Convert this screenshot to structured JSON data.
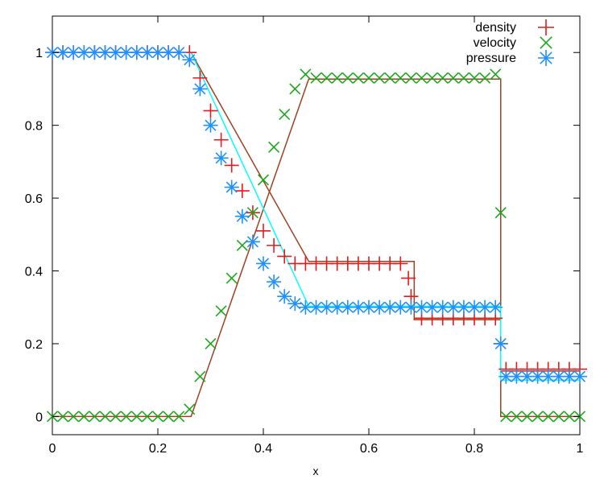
{
  "chart_data": {
    "type": "scatter",
    "title": "",
    "xlabel": "x",
    "ylabel": "",
    "xlim": [
      0,
      1
    ],
    "ylim": [
      -0.05,
      1.1
    ],
    "grid": false,
    "legend_position": "top-right",
    "xticks": [
      0,
      0.2,
      0.4,
      0.6,
      0.8,
      1
    ],
    "xtick_labels": [
      "0",
      "0.2",
      "0.4",
      "0.6",
      "0.8",
      "1"
    ],
    "yticks": [
      0,
      0.2,
      0.4,
      0.6,
      0.8,
      1
    ],
    "ytick_labels": [
      "0",
      "0.2",
      "0.4",
      "0.6",
      "0.8",
      "1"
    ],
    "series": [
      {
        "name": "density",
        "marker": "plus",
        "color": "#e41a1c",
        "line_color": "#a04020",
        "analytic_x": [
          0,
          0.263,
          0.486,
          0.686,
          0.686,
          0.85,
          0.85,
          1
        ],
        "analytic_y": [
          1,
          1,
          0.426,
          0.426,
          0.266,
          0.266,
          0.125,
          0.125
        ],
        "x": [
          0.0,
          0.02,
          0.04,
          0.06,
          0.08,
          0.1,
          0.12,
          0.14,
          0.16,
          0.18,
          0.2,
          0.22,
          0.24,
          0.26,
          0.28,
          0.3,
          0.32,
          0.34,
          0.36,
          0.38,
          0.4,
          0.42,
          0.44,
          0.46,
          0.48,
          0.5,
          0.52,
          0.54,
          0.56,
          0.58,
          0.6,
          0.62,
          0.64,
          0.66,
          0.675,
          0.68,
          0.7,
          0.72,
          0.74,
          0.76,
          0.78,
          0.8,
          0.82,
          0.84,
          0.85,
          0.86,
          0.88,
          0.9,
          0.92,
          0.94,
          0.96,
          0.98,
          1.0
        ],
        "y": [
          1.0,
          1.0,
          1.0,
          1.0,
          1.0,
          1.0,
          1.0,
          1.0,
          1.0,
          1.0,
          1.0,
          1.0,
          1.0,
          1.0,
          0.93,
          0.84,
          0.76,
          0.69,
          0.62,
          0.56,
          0.51,
          0.47,
          0.44,
          0.42,
          0.42,
          0.42,
          0.42,
          0.42,
          0.42,
          0.42,
          0.42,
          0.42,
          0.42,
          0.42,
          0.38,
          0.33,
          0.27,
          0.27,
          0.27,
          0.27,
          0.27,
          0.27,
          0.27,
          0.27,
          0.2,
          0.13,
          0.13,
          0.13,
          0.13,
          0.13,
          0.13,
          0.13,
          0.13
        ]
      },
      {
        "name": "velocity",
        "marker": "cross",
        "color": "#1ca81c",
        "line_color": "#a04020",
        "analytic_x": [
          0,
          0.263,
          0.486,
          0.85,
          0.85,
          1
        ],
        "analytic_y": [
          0,
          0,
          0.927,
          0.927,
          0,
          0
        ],
        "x": [
          0.0,
          0.02,
          0.04,
          0.06,
          0.08,
          0.1,
          0.12,
          0.14,
          0.16,
          0.18,
          0.2,
          0.22,
          0.24,
          0.26,
          0.28,
          0.3,
          0.32,
          0.34,
          0.36,
          0.38,
          0.4,
          0.42,
          0.44,
          0.46,
          0.48,
          0.5,
          0.52,
          0.54,
          0.56,
          0.58,
          0.6,
          0.62,
          0.64,
          0.66,
          0.68,
          0.7,
          0.72,
          0.74,
          0.76,
          0.78,
          0.8,
          0.82,
          0.84,
          0.85,
          0.86,
          0.88,
          0.9,
          0.92,
          0.94,
          0.96,
          0.98,
          1.0
        ],
        "y": [
          0,
          0,
          0,
          0,
          0,
          0,
          0,
          0,
          0,
          0,
          0,
          0,
          0,
          0.02,
          0.11,
          0.2,
          0.29,
          0.38,
          0.47,
          0.56,
          0.65,
          0.74,
          0.83,
          0.9,
          0.94,
          0.93,
          0.93,
          0.93,
          0.93,
          0.93,
          0.93,
          0.93,
          0.93,
          0.93,
          0.93,
          0.93,
          0.93,
          0.93,
          0.93,
          0.93,
          0.93,
          0.93,
          0.94,
          0.56,
          0,
          0,
          0,
          0,
          0,
          0,
          0,
          0
        ]
      },
      {
        "name": "pressure",
        "marker": "star",
        "color": "#1e90ff",
        "line_color": "#00ffff",
        "analytic_x": [
          0,
          0.263,
          0.486,
          0.85,
          0.85,
          1
        ],
        "analytic_y": [
          1,
          1,
          0.303,
          0.303,
          0.1,
          0.1
        ],
        "x": [
          0.0,
          0.02,
          0.04,
          0.06,
          0.08,
          0.1,
          0.12,
          0.14,
          0.16,
          0.18,
          0.2,
          0.22,
          0.24,
          0.26,
          0.28,
          0.3,
          0.32,
          0.34,
          0.36,
          0.38,
          0.4,
          0.42,
          0.44,
          0.46,
          0.48,
          0.5,
          0.52,
          0.54,
          0.56,
          0.58,
          0.6,
          0.62,
          0.64,
          0.66,
          0.68,
          0.7,
          0.72,
          0.74,
          0.76,
          0.78,
          0.8,
          0.82,
          0.84,
          0.85,
          0.86,
          0.88,
          0.9,
          0.92,
          0.94,
          0.96,
          0.98,
          1.0
        ],
        "y": [
          1.0,
          1.0,
          1.0,
          1.0,
          1.0,
          1.0,
          1.0,
          1.0,
          1.0,
          1.0,
          1.0,
          1.0,
          1.0,
          0.98,
          0.9,
          0.8,
          0.71,
          0.63,
          0.55,
          0.48,
          0.42,
          0.37,
          0.33,
          0.31,
          0.3,
          0.3,
          0.3,
          0.3,
          0.3,
          0.3,
          0.3,
          0.3,
          0.3,
          0.3,
          0.3,
          0.3,
          0.3,
          0.3,
          0.3,
          0.3,
          0.3,
          0.3,
          0.3,
          0.2,
          0.11,
          0.11,
          0.11,
          0.11,
          0.11,
          0.11,
          0.11,
          0.11
        ]
      }
    ]
  }
}
